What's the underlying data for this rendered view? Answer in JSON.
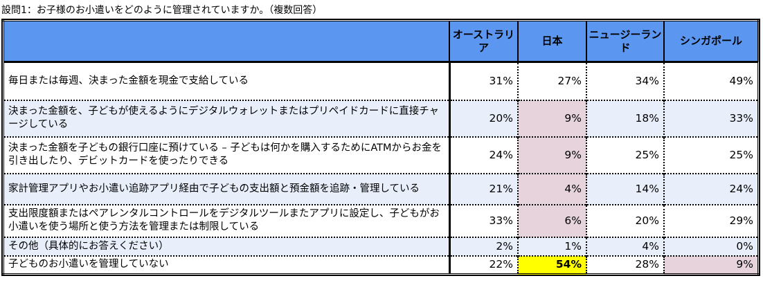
{
  "title": "設問1：お子様のお小遣いをどのように管理されていますか。（複数回答）",
  "columns": [
    "オーストラリア",
    "日本",
    "ニュージーランド",
    "シンガポール"
  ],
  "rows": [
    {
      "label": "毎日または毎週、決まった金額を現金で支給している",
      "values": [
        "31%",
        "27%",
        "34%",
        "49%"
      ]
    },
    {
      "label": "決まった金額を、子どもが使えるようにデジタルウォレットまたはプリペイドカードに直接チャージしている",
      "values": [
        "20%",
        "9%",
        "18%",
        "33%"
      ]
    },
    {
      "label": "決まった金額を子どもの銀行口座に預けている – 子どもは何かを購入するためにATMからお金を引き出したり、デビットカードを使ったりできる",
      "values": [
        "24%",
        "9%",
        "25%",
        "25%"
      ]
    },
    {
      "label": "家計管理アプリやお小遣い追跡アプリ経由で子どもの支出額と預金額を追跡・管理している",
      "values": [
        "21%",
        "4%",
        "14%",
        "24%"
      ]
    },
    {
      "label": "支出限度額またはペアレンタルコントロールをデジタルツールまたアプリに設定し、子どもがお小遣いを使う場所と使う方法を管理または制限している",
      "values": [
        "33%",
        "6%",
        "20%",
        "29%"
      ]
    },
    {
      "label": "その他（具体的にお答えください）",
      "values": [
        "2%",
        "1%",
        "4%",
        "0%"
      ]
    },
    {
      "label": "子どものお小遣いを管理していない",
      "values": [
        "22%",
        "54%",
        "28%",
        "9%"
      ]
    }
  ],
  "colors": {
    "header": "#5b96f0",
    "alt_row": "#e8effb",
    "pink": "#e6d3dc",
    "highlight": "#ffff00"
  }
}
